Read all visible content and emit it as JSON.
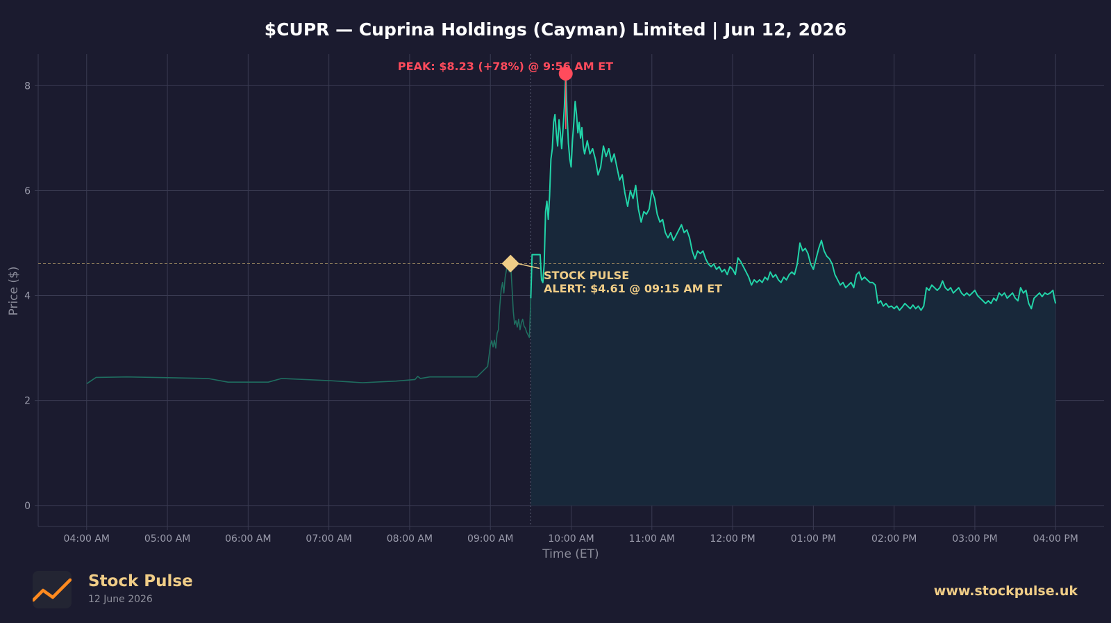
{
  "header": {
    "title": "$CUPR — Cuprina Holdings (Cayman) Limited  |  Jun 12, 2026"
  },
  "chart_data": {
    "type": "line",
    "title": "$CUPR — Cuprina Holdings (Cayman) Limited  |  Jun 12, 2026",
    "xlabel": "Time (ET)",
    "ylabel": "Price ($)",
    "ylim": [
      -0.4,
      8.6
    ],
    "yticks": [
      0,
      2,
      4,
      6,
      8
    ],
    "xlim": [
      "03:24",
      "16:36"
    ],
    "xticks": [
      {
        "t": "04:00",
        "label": "04:00 AM"
      },
      {
        "t": "05:00",
        "label": "05:00 AM"
      },
      {
        "t": "06:00",
        "label": "06:00 AM"
      },
      {
        "t": "07:00",
        "label": "07:00 AM"
      },
      {
        "t": "08:00",
        "label": "08:00 AM"
      },
      {
        "t": "09:00",
        "label": "09:00 AM"
      },
      {
        "t": "10:00",
        "label": "10:00 AM"
      },
      {
        "t": "11:00",
        "label": "11:00 AM"
      },
      {
        "t": "12:00",
        "label": "12:00 PM"
      },
      {
        "t": "13:00",
        "label": "01:00 PM"
      },
      {
        "t": "14:00",
        "label": "02:00 PM"
      },
      {
        "t": "15:00",
        "label": "03:00 PM"
      },
      {
        "t": "16:00",
        "label": "04:00 PM"
      }
    ],
    "grid": true,
    "market_open": "09:30",
    "series": [
      {
        "segment": "premarket",
        "points": [
          [
            "04:00",
            2.32
          ],
          [
            "04:07",
            2.44
          ],
          [
            "04:30",
            2.45
          ],
          [
            "05:30",
            2.42
          ],
          [
            "05:45",
            2.35
          ],
          [
            "06:15",
            2.35
          ],
          [
            "06:25",
            2.42
          ],
          [
            "07:00",
            2.38
          ],
          [
            "07:25",
            2.34
          ],
          [
            "07:50",
            2.37
          ],
          [
            "08:04",
            2.4
          ],
          [
            "08:06",
            2.46
          ],
          [
            "08:08",
            2.42
          ],
          [
            "08:15",
            2.45
          ],
          [
            "08:50",
            2.45
          ],
          [
            "08:58",
            2.65
          ],
          [
            "09:00",
            3.05
          ],
          [
            "09:01",
            3.14
          ],
          [
            "09:02",
            3.02
          ],
          [
            "09:03",
            3.15
          ],
          [
            "09:04",
            3.0
          ],
          [
            "09:05",
            3.28
          ],
          [
            "09:06",
            3.35
          ],
          [
            "09:07",
            3.8
          ],
          [
            "09:08",
            4.1
          ],
          [
            "09:09",
            4.25
          ],
          [
            "09:10",
            4.05
          ],
          [
            "09:11",
            4.35
          ],
          [
            "09:12",
            4.5
          ],
          [
            "09:13",
            4.63
          ],
          [
            "09:14",
            4.45
          ],
          [
            "09:15",
            4.61
          ],
          [
            "09:16",
            4.2
          ],
          [
            "09:17",
            3.7
          ],
          [
            "09:18",
            3.45
          ],
          [
            "09:19",
            3.52
          ],
          [
            "09:20",
            3.4
          ],
          [
            "09:21",
            3.55
          ],
          [
            "09:22",
            3.35
          ],
          [
            "09:23",
            3.48
          ],
          [
            "09:24",
            3.55
          ],
          [
            "09:25",
            3.42
          ],
          [
            "09:26",
            3.38
          ],
          [
            "09:27",
            3.3
          ],
          [
            "09:28",
            3.25
          ],
          [
            "09:29",
            3.2
          ],
          [
            "09:30",
            3.95
          ]
        ]
      },
      {
        "segment": "regular",
        "points": [
          [
            "09:30",
            3.95
          ],
          [
            "09:31",
            4.78
          ],
          [
            "09:37",
            4.78
          ],
          [
            "09:38",
            4.3
          ],
          [
            "09:39",
            4.25
          ],
          [
            "09:40",
            4.6
          ],
          [
            "09:41",
            5.6
          ],
          [
            "09:42",
            5.8
          ],
          [
            "09:43",
            5.45
          ],
          [
            "09:44",
            5.9
          ],
          [
            "09:45",
            6.6
          ],
          [
            "09:46",
            6.8
          ],
          [
            "09:47",
            7.3
          ],
          [
            "09:48",
            7.45
          ],
          [
            "09:49",
            7.1
          ],
          [
            "09:50",
            6.85
          ],
          [
            "09:51",
            7.35
          ],
          [
            "09:52",
            7.1
          ],
          [
            "09:53",
            6.8
          ],
          [
            "09:54",
            7.2
          ],
          [
            "09:55",
            7.6
          ],
          [
            "09:56",
            8.23
          ],
          [
            "09:57",
            7.45
          ],
          [
            "09:58",
            6.9
          ],
          [
            "09:59",
            6.6
          ],
          [
            "10:00",
            6.45
          ],
          [
            "10:01",
            6.95
          ],
          [
            "10:02",
            7.3
          ],
          [
            "10:03",
            7.7
          ],
          [
            "10:04",
            7.45
          ],
          [
            "10:05",
            7.1
          ],
          [
            "10:06",
            7.3
          ],
          [
            "10:07",
            7.0
          ],
          [
            "10:08",
            7.2
          ],
          [
            "10:09",
            6.85
          ],
          [
            "10:10",
            6.7
          ],
          [
            "10:12",
            6.95
          ],
          [
            "10:14",
            6.7
          ],
          [
            "10:16",
            6.8
          ],
          [
            "10:18",
            6.6
          ],
          [
            "10:20",
            6.3
          ],
          [
            "10:22",
            6.45
          ],
          [
            "10:24",
            6.85
          ],
          [
            "10:26",
            6.65
          ],
          [
            "10:28",
            6.8
          ],
          [
            "10:30",
            6.55
          ],
          [
            "10:32",
            6.7
          ],
          [
            "10:34",
            6.45
          ],
          [
            "10:36",
            6.2
          ],
          [
            "10:38",
            6.3
          ],
          [
            "10:40",
            5.95
          ],
          [
            "10:42",
            5.7
          ],
          [
            "10:44",
            6.0
          ],
          [
            "10:46",
            5.85
          ],
          [
            "10:48",
            6.1
          ],
          [
            "10:50",
            5.65
          ],
          [
            "10:52",
            5.4
          ],
          [
            "10:54",
            5.6
          ],
          [
            "10:56",
            5.55
          ],
          [
            "10:58",
            5.65
          ],
          [
            "11:00",
            6.0
          ],
          [
            "11:02",
            5.85
          ],
          [
            "11:04",
            5.55
          ],
          [
            "11:06",
            5.4
          ],
          [
            "11:08",
            5.45
          ],
          [
            "11:10",
            5.2
          ],
          [
            "11:12",
            5.1
          ],
          [
            "11:14",
            5.2
          ],
          [
            "11:16",
            5.05
          ],
          [
            "11:18",
            5.15
          ],
          [
            "11:20",
            5.25
          ],
          [
            "11:22",
            5.35
          ],
          [
            "11:24",
            5.2
          ],
          [
            "11:26",
            5.25
          ],
          [
            "11:28",
            5.1
          ],
          [
            "11:30",
            4.85
          ],
          [
            "11:32",
            4.7
          ],
          [
            "11:34",
            4.85
          ],
          [
            "11:36",
            4.8
          ],
          [
            "11:38",
            4.85
          ],
          [
            "11:40",
            4.7
          ],
          [
            "11:42",
            4.6
          ],
          [
            "11:44",
            4.55
          ],
          [
            "11:46",
            4.6
          ],
          [
            "11:48",
            4.5
          ],
          [
            "11:50",
            4.55
          ],
          [
            "11:52",
            4.45
          ],
          [
            "11:54",
            4.5
          ],
          [
            "11:56",
            4.4
          ],
          [
            "11:58",
            4.55
          ],
          [
            "12:00",
            4.5
          ],
          [
            "12:02",
            4.4
          ],
          [
            "12:04",
            4.72
          ],
          [
            "12:06",
            4.65
          ],
          [
            "12:08",
            4.55
          ],
          [
            "12:10",
            4.45
          ],
          [
            "12:12",
            4.35
          ],
          [
            "12:14",
            4.2
          ],
          [
            "12:16",
            4.3
          ],
          [
            "12:18",
            4.25
          ],
          [
            "12:20",
            4.3
          ],
          [
            "12:22",
            4.25
          ],
          [
            "12:24",
            4.35
          ],
          [
            "12:26",
            4.3
          ],
          [
            "12:28",
            4.45
          ],
          [
            "12:30",
            4.35
          ],
          [
            "12:32",
            4.4
          ],
          [
            "12:34",
            4.3
          ],
          [
            "12:36",
            4.25
          ],
          [
            "12:38",
            4.35
          ],
          [
            "12:40",
            4.3
          ],
          [
            "12:42",
            4.4
          ],
          [
            "12:44",
            4.45
          ],
          [
            "12:46",
            4.4
          ],
          [
            "12:48",
            4.6
          ],
          [
            "12:50",
            5.0
          ],
          [
            "12:52",
            4.85
          ],
          [
            "12:54",
            4.9
          ],
          [
            "12:56",
            4.8
          ],
          [
            "12:58",
            4.6
          ],
          [
            "13:00",
            4.5
          ],
          [
            "13:02",
            4.7
          ],
          [
            "13:04",
            4.9
          ],
          [
            "13:06",
            5.05
          ],
          [
            "13:08",
            4.85
          ],
          [
            "13:10",
            4.75
          ],
          [
            "13:12",
            4.7
          ],
          [
            "13:14",
            4.6
          ],
          [
            "13:16",
            4.4
          ],
          [
            "13:18",
            4.3
          ],
          [
            "13:20",
            4.2
          ],
          [
            "13:22",
            4.25
          ],
          [
            "13:24",
            4.15
          ],
          [
            "13:26",
            4.2
          ],
          [
            "13:28",
            4.25
          ],
          [
            "13:30",
            4.15
          ],
          [
            "13:32",
            4.4
          ],
          [
            "13:34",
            4.45
          ],
          [
            "13:36",
            4.3
          ],
          [
            "13:38",
            4.35
          ],
          [
            "13:40",
            4.3
          ],
          [
            "13:42",
            4.25
          ],
          [
            "13:44",
            4.25
          ],
          [
            "13:46",
            4.2
          ],
          [
            "13:48",
            3.85
          ],
          [
            "13:50",
            3.9
          ],
          [
            "13:52",
            3.8
          ],
          [
            "13:54",
            3.85
          ],
          [
            "13:56",
            3.78
          ],
          [
            "13:58",
            3.8
          ],
          [
            "14:00",
            3.75
          ],
          [
            "14:02",
            3.8
          ],
          [
            "14:04",
            3.72
          ],
          [
            "14:06",
            3.78
          ],
          [
            "14:08",
            3.85
          ],
          [
            "14:10",
            3.8
          ],
          [
            "14:12",
            3.75
          ],
          [
            "14:14",
            3.82
          ],
          [
            "14:16",
            3.75
          ],
          [
            "14:18",
            3.8
          ],
          [
            "14:20",
            3.72
          ],
          [
            "14:22",
            3.8
          ],
          [
            "14:24",
            4.15
          ],
          [
            "14:26",
            4.1
          ],
          [
            "14:28",
            4.2
          ],
          [
            "14:30",
            4.15
          ],
          [
            "14:32",
            4.1
          ],
          [
            "14:34",
            4.15
          ],
          [
            "14:36",
            4.28
          ],
          [
            "14:38",
            4.15
          ],
          [
            "14:40",
            4.1
          ],
          [
            "14:42",
            4.15
          ],
          [
            "14:44",
            4.05
          ],
          [
            "14:46",
            4.1
          ],
          [
            "14:48",
            4.15
          ],
          [
            "14:50",
            4.05
          ],
          [
            "14:52",
            4.0
          ],
          [
            "14:54",
            4.05
          ],
          [
            "14:56",
            4.0
          ],
          [
            "14:58",
            4.05
          ],
          [
            "15:00",
            4.1
          ],
          [
            "15:02",
            4.0
          ],
          [
            "15:04",
            3.95
          ],
          [
            "15:06",
            3.9
          ],
          [
            "15:08",
            3.85
          ],
          [
            "15:10",
            3.9
          ],
          [
            "15:12",
            3.85
          ],
          [
            "15:14",
            3.95
          ],
          [
            "15:16",
            3.9
          ],
          [
            "15:18",
            4.05
          ],
          [
            "15:20",
            4.0
          ],
          [
            "15:22",
            4.05
          ],
          [
            "15:24",
            3.95
          ],
          [
            "15:26",
            4.0
          ],
          [
            "15:28",
            4.05
          ],
          [
            "15:30",
            3.95
          ],
          [
            "15:32",
            3.9
          ],
          [
            "15:34",
            4.15
          ],
          [
            "15:36",
            4.05
          ],
          [
            "15:38",
            4.1
          ],
          [
            "15:40",
            3.85
          ],
          [
            "15:42",
            3.75
          ],
          [
            "15:44",
            3.95
          ],
          [
            "15:46",
            4.0
          ],
          [
            "15:48",
            4.05
          ],
          [
            "15:50",
            3.98
          ],
          [
            "15:52",
            4.05
          ],
          [
            "15:54",
            4.02
          ],
          [
            "15:56",
            4.05
          ],
          [
            "15:58",
            4.1
          ],
          [
            "15:59",
            3.95
          ],
          [
            "16:00",
            3.85
          ]
        ]
      }
    ],
    "annotations": [
      {
        "t": "09:56",
        "value": 8.23,
        "text": "PEAK: $8.23 (+78%) @ 9:56 AM ET",
        "color": "#ff4b5c"
      },
      {
        "t": "09:15",
        "value": 4.61,
        "line1": "STOCK PULSE",
        "line2": "ALERT: $4.61 @ 09:15 AM ET",
        "color": "#f0cd87"
      }
    ],
    "reference_line": {
      "value": 4.61
    },
    "colors": {
      "background": "#1b1b2f",
      "line_regular": "#22d3a8",
      "line_premarket": "#1f6e60",
      "fill": "#18283a",
      "grid": "#3a3b52",
      "tick_text": "#9a9bab",
      "label_text": "#8a8b99"
    }
  },
  "footer": {
    "logo_icon": "trend-line-icon",
    "brand": "Stock Pulse",
    "date": "12 June 2026",
    "website": "www.stockpulse.uk"
  }
}
